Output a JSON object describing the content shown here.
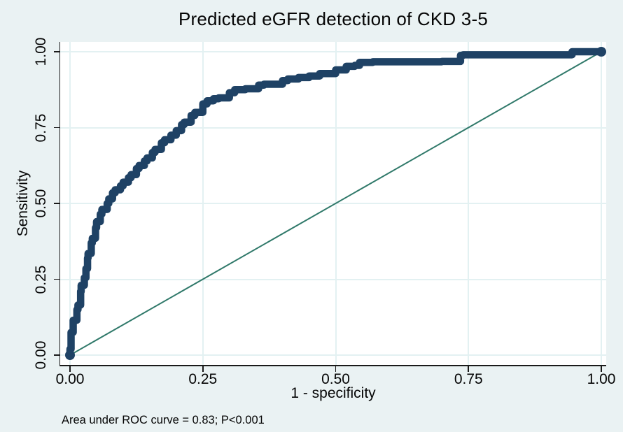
{
  "title": "Predicted eGFR detection of CKD 3-5",
  "caption": "Area under ROC curve = 0.83; P<0.001",
  "colors": {
    "background": "#eaf2f3",
    "plot_background": "#ffffff",
    "gridline": "#e3f1f2",
    "axis": "#1a1a1a",
    "roc_curve": "#1f4265",
    "reference_line": "#30796a"
  },
  "chart_data": {
    "type": "line",
    "title": "Predicted eGFR detection of CKD 3-5",
    "xlabel": "1 - specificity",
    "ylabel": "Sensitivity",
    "xlim": [
      0,
      1
    ],
    "ylim": [
      0,
      1
    ],
    "xticks": [
      0,
      0.25,
      0.5,
      0.75,
      1
    ],
    "yticks": [
      0,
      0.25,
      0.5,
      0.75,
      1
    ],
    "xtick_labels": [
      "0.00",
      "0.25",
      "0.50",
      "0.75",
      "1.00"
    ],
    "ytick_labels": [
      "0.00",
      "0.25",
      "0.50",
      "0.75",
      "1.00"
    ],
    "grid": true,
    "annotation": "Area under ROC curve = 0.83; P<0.001",
    "auc": 0.83,
    "p_value": "<0.001",
    "series": [
      {
        "name": "ROC curve",
        "style": "step",
        "color": "#1f4265",
        "stroke_width": 10.5,
        "x": [
          0.0,
          0.002,
          0.002,
          0.006,
          0.006,
          0.013,
          0.015,
          0.02,
          0.021,
          0.027,
          0.03,
          0.033,
          0.034,
          0.04,
          0.042,
          0.048,
          0.05,
          0.057,
          0.06,
          0.07,
          0.073,
          0.08,
          0.085,
          0.095,
          0.1,
          0.11,
          0.115,
          0.125,
          0.13,
          0.14,
          0.145,
          0.155,
          0.16,
          0.172,
          0.178,
          0.19,
          0.2,
          0.21,
          0.215,
          0.228,
          0.235,
          0.25,
          0.258,
          0.27,
          0.28,
          0.3,
          0.31,
          0.33,
          0.355,
          0.365,
          0.4,
          0.41,
          0.43,
          0.45,
          0.47,
          0.5,
          0.52,
          0.536,
          0.545,
          0.57,
          0.62,
          0.7,
          0.735,
          0.74,
          0.76,
          0.85,
          0.945,
          0.955,
          1.0
        ],
        "y": [
          0.0,
          0.02,
          0.055,
          0.075,
          0.1,
          0.115,
          0.15,
          0.165,
          0.21,
          0.23,
          0.255,
          0.285,
          0.32,
          0.335,
          0.37,
          0.385,
          0.42,
          0.44,
          0.465,
          0.48,
          0.5,
          0.515,
          0.535,
          0.545,
          0.558,
          0.57,
          0.585,
          0.595,
          0.615,
          0.625,
          0.64,
          0.65,
          0.668,
          0.678,
          0.7,
          0.71,
          0.725,
          0.74,
          0.76,
          0.768,
          0.79,
          0.8,
          0.828,
          0.838,
          0.845,
          0.848,
          0.865,
          0.875,
          0.878,
          0.89,
          0.893,
          0.905,
          0.91,
          0.915,
          0.92,
          0.928,
          0.94,
          0.952,
          0.955,
          0.965,
          0.967,
          0.967,
          0.968,
          0.988,
          0.99,
          0.99,
          0.99,
          1.0,
          1.0
        ]
      },
      {
        "name": "Reference diagonal",
        "style": "straight",
        "color": "#30796a",
        "stroke_width": 2,
        "x": [
          0,
          1
        ],
        "y": [
          0,
          1
        ]
      }
    ]
  }
}
